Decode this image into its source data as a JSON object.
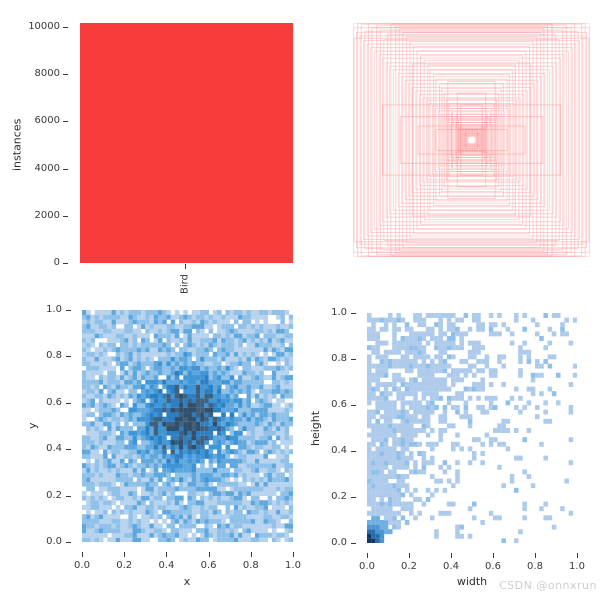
{
  "watermark": {
    "text": "CSDN @onnxrun",
    "color": "#cdced2"
  },
  "chart_data": [
    {
      "id": "class-instances",
      "type": "bar",
      "categories": [
        "Bird"
      ],
      "values": [
        10170
      ],
      "ylabel": "instances",
      "xlabel": "",
      "ylim": [
        0,
        10700
      ],
      "yticks": [
        0,
        2000,
        4000,
        6000,
        8000,
        10000
      ],
      "ytick_labels": [
        "0",
        "2000",
        "4000",
        "6000",
        "8000",
        "10000"
      ],
      "grid": false,
      "legend": null,
      "bar_color": "#f83c3c"
    },
    {
      "id": "bounding-box-overlay",
      "type": "boxes-overlay",
      "description": "all bounding boxes drawn centered at (0.5, 0.5)",
      "center_x": 0.5,
      "center_y": 0.5,
      "stroke": "#fa3c3c",
      "stroke_opacity": 0.22,
      "boxes_wh": [
        [
          0.03,
          0.04
        ],
        [
          0.04,
          0.03
        ],
        [
          0.05,
          0.05
        ],
        [
          0.04,
          0.06
        ],
        [
          0.06,
          0.04
        ],
        [
          0.05,
          0.08
        ],
        [
          0.07,
          0.06
        ],
        [
          0.06,
          0.07
        ],
        [
          0.08,
          0.05
        ],
        [
          0.07,
          0.09
        ],
        [
          0.09,
          0.07
        ],
        [
          0.08,
          0.1
        ],
        [
          0.1,
          0.08
        ],
        [
          0.09,
          0.12
        ],
        [
          0.11,
          0.09
        ],
        [
          0.1,
          0.13
        ],
        [
          0.12,
          0.1
        ],
        [
          0.13,
          0.15
        ],
        [
          0.11,
          0.17
        ],
        [
          0.14,
          0.11
        ],
        [
          0.15,
          0.19
        ],
        [
          0.13,
          0.22
        ],
        [
          0.17,
          0.13
        ],
        [
          0.16,
          0.24
        ],
        [
          0.18,
          0.15
        ],
        [
          0.2,
          0.17
        ],
        [
          0.17,
          0.27
        ],
        [
          0.22,
          0.18
        ],
        [
          0.19,
          0.31
        ],
        [
          0.24,
          0.2
        ],
        [
          0.21,
          0.35
        ],
        [
          0.26,
          0.22
        ],
        [
          0.23,
          0.4
        ],
        [
          0.28,
          0.25
        ],
        [
          0.25,
          0.44
        ],
        [
          0.31,
          0.27
        ],
        [
          0.27,
          0.48
        ],
        [
          0.33,
          0.29
        ],
        [
          0.3,
          0.52
        ],
        [
          0.36,
          0.31
        ],
        [
          0.32,
          0.56
        ],
        [
          0.38,
          0.34
        ],
        [
          0.35,
          0.6
        ],
        [
          0.41,
          0.36
        ],
        [
          0.37,
          0.64
        ],
        [
          0.44,
          0.39
        ],
        [
          0.4,
          0.68
        ],
        [
          0.47,
          0.42
        ],
        [
          0.43,
          0.72
        ],
        [
          0.5,
          0.45
        ],
        [
          0.46,
          0.76
        ],
        [
          0.53,
          0.48
        ],
        [
          0.49,
          0.8
        ],
        [
          0.56,
          0.51
        ],
        [
          0.52,
          0.84
        ],
        [
          0.59,
          0.54
        ],
        [
          0.55,
          0.88
        ],
        [
          0.62,
          0.57
        ],
        [
          0.58,
          0.92
        ],
        [
          0.66,
          0.6
        ],
        [
          0.61,
          0.95
        ],
        [
          0.69,
          0.63
        ],
        [
          0.64,
          0.97
        ],
        [
          0.72,
          0.66
        ],
        [
          0.68,
          0.99
        ],
        [
          0.75,
          0.7
        ],
        [
          0.71,
          0.9
        ],
        [
          0.78,
          0.73
        ],
        [
          0.74,
          0.86
        ],
        [
          0.82,
          0.76
        ],
        [
          0.77,
          0.94
        ],
        [
          0.85,
          0.79
        ],
        [
          0.8,
          0.98
        ],
        [
          0.88,
          0.82
        ],
        [
          0.84,
          0.96
        ],
        [
          0.91,
          0.85
        ],
        [
          0.87,
          1.0
        ],
        [
          0.94,
          0.89
        ],
        [
          0.9,
          0.93
        ],
        [
          0.97,
          0.92
        ],
        [
          0.93,
          0.99
        ],
        [
          1.0,
          0.96
        ],
        [
          0.96,
          1.0
        ],
        [
          0.99,
          0.87
        ],
        [
          1.0,
          1.0
        ],
        [
          0.45,
          0.12
        ],
        [
          0.6,
          0.2
        ],
        [
          0.3,
          0.09
        ],
        [
          0.75,
          0.3
        ],
        [
          0.2,
          0.5
        ],
        [
          0.12,
          0.4
        ],
        [
          0.09,
          0.3
        ],
        [
          0.5,
          0.65
        ]
      ]
    },
    {
      "id": "xy-heatmap",
      "type": "heatmap",
      "xlabel": "x",
      "ylabel": "y",
      "xticks": [
        0.0,
        0.2,
        0.4,
        0.6,
        0.8,
        1.0
      ],
      "yticks": [
        0.0,
        0.2,
        0.4,
        0.6,
        0.8,
        1.0
      ],
      "xtick_labels": [
        "0.0",
        "0.2",
        "0.4",
        "0.6",
        "0.8",
        "1.0"
      ],
      "ytick_labels": [
        "0.0",
        "0.2",
        "0.4",
        "0.6",
        "0.8",
        "1.0"
      ],
      "bins_x": 50,
      "bins_y": 50,
      "xlim": [
        0,
        1
      ],
      "ylim": [
        0,
        1
      ],
      "grid": false,
      "palette": [
        "#ffffff",
        "#b7d3ee",
        "#8fc1e9",
        "#5fa8de",
        "#3e96d6",
        "#2d7fc2",
        "#41607e",
        "#314f68"
      ],
      "density_model": {
        "kind": "gaussian-core",
        "cx": 0.5,
        "cy": 0.53,
        "sx": 0.155,
        "sy": 0.145,
        "core_gain": 1.05,
        "noise_gain": 0.55,
        "base": 0.3,
        "empty_rate": 0.1,
        "seed": 20
      }
    },
    {
      "id": "wh-heatmap",
      "type": "heatmap",
      "xlabel": "width",
      "ylabel": "height",
      "xticks": [
        0.0,
        0.2,
        0.4,
        0.6,
        0.8,
        1.0
      ],
      "yticks": [
        0.0,
        0.2,
        0.4,
        0.6,
        0.8,
        1.0
      ],
      "xtick_labels": [
        "0.0",
        "0.2",
        "0.4",
        "0.6",
        "0.8",
        "1.0"
      ],
      "ytick_labels": [
        "0.0",
        "0.2",
        "0.4",
        "0.6",
        "0.8",
        "1.0"
      ],
      "bins_x": 50,
      "bins_y": 50,
      "xlim": [
        0,
        1
      ],
      "ylim": [
        0,
        1
      ],
      "grid": false,
      "palette": [
        "#ffffff",
        "#aecbec",
        "#90c0e9",
        "#6fb0e0",
        "#4b95d2",
        "#2b6cae",
        "#15375f"
      ],
      "density_model": {
        "kind": "origin-wedge",
        "solid_w0": 0.07,
        "solid_slope": 0.4,
        "mid_w0": 0.12,
        "mid_slope": 0.52,
        "origin_r": 0.09,
        "scatter_base": 0.38,
        "scatter_fall": 0.45,
        "seed": 5
      }
    }
  ],
  "layout_note": "2x2 figure of dataset label statistics"
}
